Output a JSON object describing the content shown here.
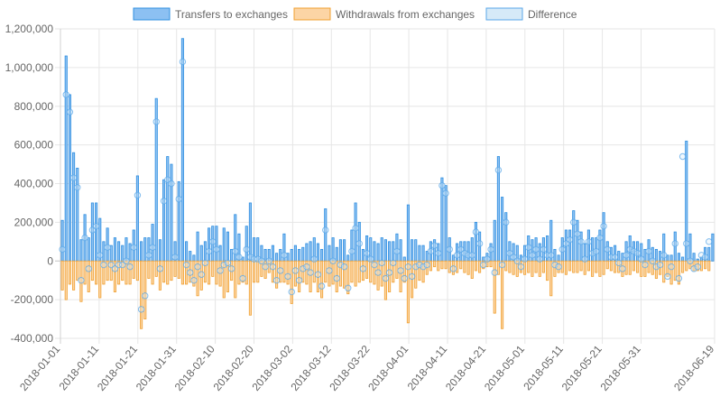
{
  "chart_data": {
    "type": "bar",
    "title": "",
    "xlabel": "",
    "ylabel": "",
    "legend_position": "top",
    "grid": true,
    "ylim": [
      -400000,
      1200000
    ],
    "y_ticks": [
      -400000,
      -200000,
      0,
      200000,
      400000,
      600000,
      800000,
      1000000,
      1200000
    ],
    "y_tick_labels": [
      "-400,000",
      "-200,000",
      "0",
      "200,000",
      "400,000",
      "600,000",
      "800,000",
      "1,000,000",
      "1,200,000"
    ],
    "x_start": "2018-01-01",
    "x_end": "2018-06-19",
    "x_tick_labels": [
      "2018-01-01",
      "2018-01-11",
      "2018-01-21",
      "2018-01-31",
      "2018-02-10",
      "2018-02-20",
      "2018-03-02",
      "2018-03-12",
      "2018-03-22",
      "2018-04-01",
      "2018-04-11",
      "2018-04-21",
      "2018-05-01",
      "2018-05-11",
      "2018-05-21",
      "2018-05-31",
      "2018-06-19"
    ],
    "series": [
      {
        "name": "Transfers to exchanges",
        "color": "#2f8fe0",
        "fill": "#8cc0f2",
        "values": [
          210000,
          1060000,
          860000,
          560000,
          480000,
          110000,
          240000,
          120000,
          300000,
          300000,
          220000,
          100000,
          170000,
          80000,
          120000,
          100000,
          80000,
          120000,
          90000,
          160000,
          440000,
          100000,
          120000,
          120000,
          190000,
          840000,
          110000,
          420000,
          540000,
          500000,
          100000,
          410000,
          1150000,
          100000,
          50000,
          30000,
          150000,
          80000,
          100000,
          170000,
          180000,
          180000,
          80000,
          170000,
          150000,
          60000,
          240000,
          140000,
          20000,
          180000,
          300000,
          120000,
          120000,
          80000,
          60000,
          60000,
          80000,
          40000,
          60000,
          140000,
          40000,
          60000,
          80000,
          60000,
          70000,
          90000,
          100000,
          120000,
          90000,
          60000,
          270000,
          80000,
          120000,
          70000,
          110000,
          110000,
          30000,
          160000,
          300000,
          200000,
          60000,
          130000,
          120000,
          100000,
          90000,
          120000,
          110000,
          100000,
          100000,
          140000,
          110000,
          20000,
          290000,
          110000,
          110000,
          80000,
          80000,
          50000,
          100000,
          110000,
          90000,
          430000,
          390000,
          120000,
          30000,
          90000,
          100000,
          100000,
          100000,
          120000,
          200000,
          150000,
          20000,
          40000,
          90000,
          210000,
          540000,
          330000,
          250000,
          100000,
          90000,
          80000,
          30000,
          80000,
          130000,
          110000,
          120000,
          90000,
          120000,
          130000,
          210000,
          60000,
          30000,
          120000,
          160000,
          160000,
          260000,
          210000,
          150000,
          90000,
          160000,
          120000,
          120000,
          160000,
          250000,
          100000,
          70000,
          80000,
          50000,
          40000,
          100000,
          130000,
          100000,
          100000,
          90000,
          60000,
          110000,
          70000,
          60000,
          50000,
          140000,
          30000,
          30000,
          150000,
          40000,
          20000,
          620000,
          140000,
          40000,
          10000,
          20000,
          70000,
          70000,
          140000
        ]
      },
      {
        "name": "Withdrawals from exchanges",
        "color": "#f0a030",
        "fill": "#fcd5a5",
        "values": [
          -150000,
          -200000,
          -120000,
          -150000,
          -100000,
          -210000,
          -120000,
          -160000,
          -100000,
          -120000,
          -190000,
          -120000,
          -100000,
          -100000,
          -160000,
          -120000,
          -100000,
          -120000,
          -120000,
          -90000,
          -100000,
          -350000,
          -300000,
          -90000,
          -120000,
          -80000,
          -150000,
          -110000,
          -120000,
          -100000,
          -80000,
          -90000,
          -120000,
          -120000,
          -110000,
          -130000,
          -180000,
          -150000,
          -110000,
          -120000,
          -80000,
          -120000,
          -130000,
          -190000,
          -160000,
          -100000,
          -190000,
          -120000,
          -110000,
          -120000,
          -280000,
          -110000,
          -110000,
          -80000,
          -90000,
          -60000,
          -110000,
          -140000,
          -110000,
          -110000,
          -120000,
          -220000,
          -130000,
          -160000,
          -110000,
          -120000,
          -160000,
          -110000,
          -160000,
          -190000,
          -110000,
          -130000,
          -120000,
          -160000,
          -130000,
          -140000,
          -170000,
          -110000,
          -130000,
          -110000,
          -100000,
          -90000,
          -110000,
          -120000,
          -150000,
          -130000,
          -200000,
          -160000,
          -110000,
          -90000,
          -160000,
          -110000,
          -320000,
          -190000,
          -140000,
          -100000,
          -110000,
          -70000,
          -50000,
          -30000,
          -50000,
          -40000,
          -40000,
          -60000,
          -70000,
          -60000,
          -40000,
          -60000,
          -70000,
          -90000,
          -50000,
          -60000,
          -40000,
          -30000,
          -30000,
          -270000,
          -70000,
          -350000,
          -50000,
          -60000,
          -70000,
          -80000,
          -60000,
          -70000,
          -60000,
          -80000,
          -60000,
          -80000,
          -60000,
          -100000,
          -180000,
          -80000,
          -60000,
          -60000,
          -70000,
          -50000,
          -60000,
          -60000,
          -50000,
          -70000,
          -50000,
          -80000,
          -60000,
          -80000,
          -70000,
          -40000,
          -50000,
          -60000,
          -60000,
          -80000,
          -70000,
          -70000,
          -50000,
          -60000,
          -80000,
          -80000,
          -60000,
          -70000,
          -90000,
          -70000,
          -110000,
          -80000,
          -120000,
          -100000,
          -120000,
          -60000,
          -50000,
          -40000,
          -50000,
          -50000,
          -50000,
          -40000,
          -50000
        ]
      },
      {
        "name": "Difference",
        "color": "#5aa7e8",
        "fill": "#d6eaf8",
        "values": [
          60000,
          860000,
          770000,
          430000,
          380000,
          -100000,
          120000,
          -40000,
          160000,
          180000,
          30000,
          -20000,
          70000,
          -20000,
          -40000,
          -20000,
          -20000,
          0,
          -30000,
          70000,
          340000,
          -250000,
          -180000,
          30000,
          70000,
          720000,
          -40000,
          310000,
          420000,
          400000,
          20000,
          320000,
          1030000,
          -20000,
          -60000,
          -100000,
          -30000,
          -70000,
          -10000,
          50000,
          100000,
          60000,
          -50000,
          -20000,
          -10000,
          -40000,
          50000,
          20000,
          -90000,
          60000,
          20000,
          10000,
          10000,
          0,
          -30000,
          0,
          -30000,
          -100000,
          -50000,
          30000,
          -80000,
          -160000,
          -50000,
          -100000,
          -40000,
          -30000,
          -60000,
          10000,
          -70000,
          -130000,
          160000,
          -50000,
          0,
          -90000,
          -20000,
          -30000,
          -140000,
          50000,
          170000,
          90000,
          -40000,
          40000,
          10000,
          -20000,
          -60000,
          -10000,
          -90000,
          -60000,
          -10000,
          50000,
          -50000,
          -90000,
          -30000,
          -80000,
          -30000,
          -20000,
          -30000,
          -20000,
          50000,
          80000,
          40000,
          390000,
          350000,
          60000,
          -40000,
          30000,
          60000,
          40000,
          30000,
          30000,
          150000,
          90000,
          -20000,
          10000,
          60000,
          -60000,
          470000,
          -20000,
          200000,
          40000,
          20000,
          0,
          -30000,
          10000,
          70000,
          30000,
          60000,
          10000,
          60000,
          30000,
          30000,
          -20000,
          -30000,
          60000,
          90000,
          110000,
          200000,
          140000,
          100000,
          10000,
          100000,
          40000,
          50000,
          120000,
          180000,
          60000,
          20000,
          20000,
          -10000,
          -40000,
          30000,
          60000,
          50000,
          40000,
          10000,
          -20000,
          50000,
          0,
          -30000,
          -20000,
          30000,
          -80000,
          -30000,
          90000,
          -90000,
          540000,
          90000,
          0,
          -40000,
          -30000,
          30000,
          20000,
          100000
        ]
      }
    ]
  }
}
